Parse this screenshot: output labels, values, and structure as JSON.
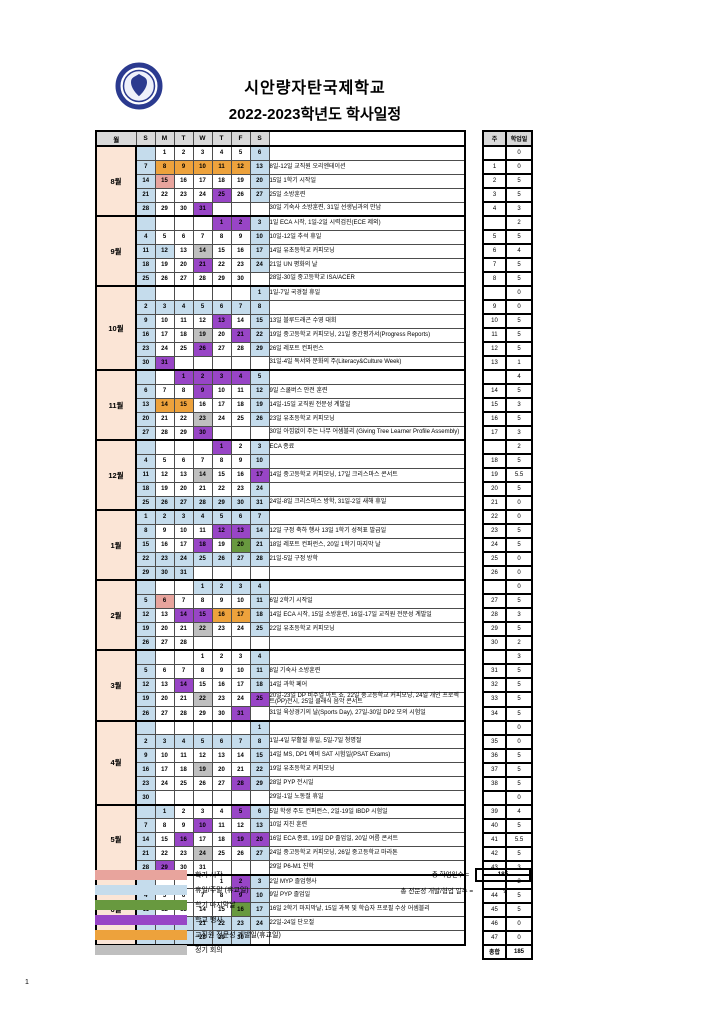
{
  "header": {
    "school_name": "시안량자탄국제학교",
    "title": "2022-2023학년도 학사일정"
  },
  "colors": {
    "holiday_weekend": "#c5dcec",
    "school_event": "#9845c6",
    "pd_day": "#eda23c",
    "semester_start": "#e8a49d",
    "semester_end": "#68993f",
    "meeting": "#bfbfbf",
    "month_column_bg": "#fbe5d6",
    "header_bg": "#d9d9d9",
    "logo_navy": "#2b3a8f"
  },
  "calendar": {
    "headers": {
      "month": "월",
      "days": [
        "S",
        "M",
        "T",
        "W",
        "T",
        "F",
        "S"
      ],
      "week": "주",
      "school_days": "학업일"
    },
    "cell_format": "day|colorcode — h=holiday/weekend, e=school-event, p=pd-day, s=semester-start, x=semester-end, m=meeting, empty=regular school day",
    "months": [
      {
        "name": "8월",
        "rows": [
          {
            "days": [
              "|h",
              "1|",
              "2|",
              "3|",
              "4|",
              "5|",
              "6|h"
            ],
            "note": "",
            "week": "",
            "sd": "0"
          },
          {
            "days": [
              "7|h",
              "8|p",
              "9|p",
              "10|p",
              "11|p",
              "12|p",
              "13|h"
            ],
            "note": "8일-12일 교직원 오리엔테이션",
            "week": "1",
            "sd": "0"
          },
          {
            "days": [
              "14|h",
              "15|s",
              "16|",
              "17|",
              "18|",
              "19|",
              "20|h"
            ],
            "note": "15일 1학기 시작일",
            "week": "2",
            "sd": "5"
          },
          {
            "days": [
              "21|h",
              "22|",
              "23|",
              "24|",
              "25|e",
              "26|",
              "27|h"
            ],
            "note": "25일 소방훈련",
            "week": "3",
            "sd": "5"
          },
          {
            "days": [
              "28|h",
              "29|",
              "30|",
              "31|e",
              "|",
              "|",
              "|"
            ],
            "note": "30일 기숙사 소방훈련, 31일 선생님과의 만남",
            "week": "4",
            "sd": "3"
          }
        ]
      },
      {
        "name": "9월",
        "rows": [
          {
            "days": [
              "|h",
              "|",
              "|",
              "|",
              "1|e",
              "2|e",
              "3|h"
            ],
            "note": "1일 ECA 시작, 1일-2일 시력검진(ECE 제외)",
            "week": "",
            "sd": "2"
          },
          {
            "days": [
              "4|h",
              "5|",
              "6|",
              "7|",
              "8|",
              "9|",
              "10|h"
            ],
            "note": "10일-12일 추석 휴일",
            "week": "5",
            "sd": "5"
          },
          {
            "days": [
              "11|h",
              "12|h",
              "13|",
              "14|m",
              "15|",
              "16|",
              "17|h"
            ],
            "note": "14일 유초등학교 커피모닝",
            "week": "6",
            "sd": "4"
          },
          {
            "days": [
              "18|h",
              "19|",
              "20|",
              "21|e",
              "22|",
              "23|",
              "24|h"
            ],
            "note": "21일 UN 평화의 날",
            "week": "7",
            "sd": "5"
          },
          {
            "days": [
              "25|h",
              "26|",
              "27|",
              "28|",
              "29|",
              "30|",
              "|"
            ],
            "note": "28일-30일 중고등학교 ISA/ACER",
            "week": "8",
            "sd": "5"
          }
        ]
      },
      {
        "name": "10월",
        "rows": [
          {
            "days": [
              "|h",
              "|",
              "|",
              "|",
              "|",
              "|",
              "1|h"
            ],
            "note": "1일-7일 국경절 휴일",
            "week": "",
            "sd": "0"
          },
          {
            "days": [
              "2|h",
              "3|h",
              "4|h",
              "5|h",
              "6|h",
              "7|h",
              "8|h"
            ],
            "note": "",
            "week": "9",
            "sd": "0"
          },
          {
            "days": [
              "9|h",
              "10|",
              "11|",
              "12|",
              "13|e",
              "14|",
              "15|h"
            ],
            "note": "13일 블루드래곤 수영 대회",
            "week": "10",
            "sd": "5"
          },
          {
            "days": [
              "16|h",
              "17|",
              "18|",
              "19|m",
              "20|",
              "21|e",
              "22|h"
            ],
            "note": "19일 중고등학교 커피모닝, 21일 중간평가서(Progress Reports)",
            "week": "11",
            "sd": "5"
          },
          {
            "days": [
              "23|h",
              "24|",
              "25|",
              "26|e",
              "27|",
              "28|",
              "29|h"
            ],
            "note": "26일 레포트 컨퍼런스",
            "week": "12",
            "sd": "5"
          },
          {
            "days": [
              "30|h",
              "31|e",
              "|",
              "|",
              "|",
              "|",
              "|"
            ],
            "note": "31일-4일 독서와 문화의 주(Literacy&Culture Week)",
            "week": "13",
            "sd": "1"
          }
        ]
      },
      {
        "name": "11월",
        "rows": [
          {
            "days": [
              "|h",
              "|",
              "1|e",
              "2|e",
              "3|e",
              "4|e",
              "5|h"
            ],
            "note": "",
            "week": "",
            "sd": "4"
          },
          {
            "days": [
              "6|h",
              "7|",
              "8|",
              "9|e",
              "10|",
              "11|",
              "12|h"
            ],
            "note": "9일 스쿨버스 안전 훈련",
            "week": "14",
            "sd": "5"
          },
          {
            "days": [
              "13|h",
              "14|p",
              "15|p",
              "16|",
              "17|",
              "18|",
              "19|h"
            ],
            "note": "14일-15일 교직원 전문성 계발일",
            "week": "15",
            "sd": "3"
          },
          {
            "days": [
              "20|h",
              "21|",
              "22|",
              "23|m",
              "24|",
              "25|",
              "26|h"
            ],
            "note": "23일 유초등학교 커피모닝",
            "week": "16",
            "sd": "5"
          },
          {
            "days": [
              "27|h",
              "28|",
              "29|",
              "30|e",
              "|",
              "|",
              "|"
            ],
            "note": "30일 아낌없이 주는 나무 어셈블리 (Giving Tree Learner Profile Assembly)",
            "week": "17",
            "sd": "3"
          }
        ]
      },
      {
        "name": "12월",
        "rows": [
          {
            "days": [
              "|h",
              "|",
              "|",
              "|",
              "1|e",
              "2|",
              "3|h"
            ],
            "note": "ECA 종료",
            "week": "",
            "sd": "2"
          },
          {
            "days": [
              "4|h",
              "5|",
              "6|",
              "7|",
              "8|",
              "9|",
              "10|h"
            ],
            "note": "",
            "week": "18",
            "sd": "5"
          },
          {
            "days": [
              "11|h",
              "12|",
              "13|",
              "14|m",
              "15|",
              "16|",
              "17|e"
            ],
            "note": "14일 중고등학교 커피모닝, 17일 크리스마스 콘서트",
            "week": "19",
            "sd": "5.5"
          },
          {
            "days": [
              "18|h",
              "19|",
              "20|",
              "21|",
              "22|",
              "23|",
              "24|h"
            ],
            "note": "",
            "week": "20",
            "sd": "5"
          },
          {
            "days": [
              "25|h",
              "26|h",
              "27|h",
              "28|h",
              "29|h",
              "30|h",
              "31|h"
            ],
            "note": "24일-8일 크리스마스 방학, 31일-2일 새해 휴일",
            "week": "21",
            "sd": "0"
          }
        ]
      },
      {
        "name": "1월",
        "rows": [
          {
            "days": [
              "1|h",
              "2|h",
              "3|h",
              "4|h",
              "5|h",
              "6|h",
              "7|h"
            ],
            "note": "",
            "week": "22",
            "sd": "0"
          },
          {
            "days": [
              "8|h",
              "9|",
              "10|",
              "11|",
              "12|e",
              "13|e",
              "14|h"
            ],
            "note": "12일 구정 축하 행사 13일 1학기 성적표 발급일",
            "week": "23",
            "sd": "5"
          },
          {
            "days": [
              "15|h",
              "16|",
              "17|",
              "18|e",
              "19|",
              "20|x",
              "21|h"
            ],
            "note": "18일 레포트 컨퍼런스, 20일 1학기 마지막 날",
            "week": "24",
            "sd": "5"
          },
          {
            "days": [
              "22|h",
              "23|h",
              "24|h",
              "25|h",
              "26|h",
              "27|h",
              "28|h"
            ],
            "note": "21일-5일 구정 방학",
            "week": "25",
            "sd": "0"
          },
          {
            "days": [
              "29|h",
              "30|h",
              "31|h",
              "|",
              "|",
              "|",
              "|"
            ],
            "note": "",
            "week": "26",
            "sd": "0"
          }
        ]
      },
      {
        "name": "2월",
        "rows": [
          {
            "days": [
              "|h",
              "|",
              "|",
              "1|h",
              "2|h",
              "3|h",
              "4|h"
            ],
            "note": "",
            "week": "",
            "sd": "0"
          },
          {
            "days": [
              "5|h",
              "6|s",
              "7|",
              "8|",
              "9|",
              "10|",
              "11|h"
            ],
            "note": "6일 2학기 시작일",
            "week": "27",
            "sd": "5"
          },
          {
            "days": [
              "12|h",
              "13|",
              "14|e",
              "15|e",
              "16|p",
              "17|p",
              "18|h"
            ],
            "note": "14일 ECA 시작, 15일 소방훈련, 16일-17일 교직원 전문성 계발일",
            "week": "28",
            "sd": "3"
          },
          {
            "days": [
              "19|h",
              "20|",
              "21|",
              "22|m",
              "23|",
              "24|",
              "25|h"
            ],
            "note": "22일 유초등학교 커피모닝",
            "week": "29",
            "sd": "5"
          },
          {
            "days": [
              "26|h",
              "27|",
              "28|",
              "|",
              "|",
              "|",
              "|"
            ],
            "note": "",
            "week": "30",
            "sd": "2"
          }
        ]
      },
      {
        "name": "3월",
        "rows": [
          {
            "days": [
              "|h",
              "|",
              "|",
              "1|",
              "2|",
              "3|",
              "4|h"
            ],
            "note": "",
            "week": "",
            "sd": "3"
          },
          {
            "days": [
              "5|h",
              "6|",
              "7|",
              "8|",
              "9|",
              "10|",
              "11|h"
            ],
            "note": "8일 기숙사 소방훈련",
            "week": "31",
            "sd": "5"
          },
          {
            "days": [
              "12|h",
              "13|",
              "14|e",
              "15|",
              "16|",
              "17|",
              "18|h"
            ],
            "note": "14일 과학 페어",
            "week": "32",
            "sd": "5"
          },
          {
            "days": [
              "19|h",
              "20|",
              "21|",
              "22|m",
              "23|",
              "24|",
              "25|e"
            ],
            "note": "20일-23일 DP 비주얼 아트 쇼, 22일 중고등학교 커피모닝, 24일 개인 프로젝트(PP)전시, 25일 클래식 음악 콘서트",
            "week": "33",
            "sd": "5"
          },
          {
            "days": [
              "26|h",
              "27|",
              "28|",
              "29|",
              "30|",
              "31|e",
              "|"
            ],
            "note": "31일 육상경기의 날(Sports Day), 27일-30일 DP2 모의 시험일",
            "week": "34",
            "sd": "5"
          }
        ]
      },
      {
        "name": "4월",
        "rows": [
          {
            "days": [
              "|h",
              "|",
              "|",
              "|",
              "|",
              "|",
              "1|h"
            ],
            "note": "",
            "week": "",
            "sd": "0"
          },
          {
            "days": [
              "2|h",
              "3|h",
              "4|h",
              "5|h",
              "6|h",
              "7|h",
              "8|h"
            ],
            "note": "1일-4일 부활절 휴일, 5일-7일 청명절",
            "week": "35",
            "sd": "0"
          },
          {
            "days": [
              "9|h",
              "10|",
              "11|",
              "12|",
              "13|",
              "14|",
              "15|h"
            ],
            "note": "14일 MS, DP1 예비 SAT 시험일(PSAT Exams)",
            "week": "36",
            "sd": "5"
          },
          {
            "days": [
              "16|h",
              "17|",
              "18|",
              "19|m",
              "20|",
              "21|",
              "22|h"
            ],
            "note": "19일 유초등학교 커피모닝",
            "week": "37",
            "sd": "5"
          },
          {
            "days": [
              "23|h",
              "24|",
              "25|",
              "26|",
              "27|",
              "28|e",
              "29|h"
            ],
            "note": "28일 PYP 전시일",
            "week": "38",
            "sd": "5"
          },
          {
            "days": [
              "30|h",
              "|",
              "|",
              "|",
              "|",
              "|",
              "|"
            ],
            "note": "29일-1일 노동절 휴일",
            "week": "",
            "sd": "0"
          }
        ]
      },
      {
        "name": "5월",
        "rows": [
          {
            "days": [
              "|h",
              "1|h",
              "2|",
              "3|",
              "4|",
              "5|e",
              "6|h"
            ],
            "note": "5일 학생 주도 컨퍼런스, 2일-19일 IBDP 시험일",
            "week": "39",
            "sd": "4"
          },
          {
            "days": [
              "7|h",
              "8|",
              "9|",
              "10|e",
              "11|",
              "12|",
              "13|h"
            ],
            "note": "10일 지진 훈련",
            "week": "40",
            "sd": "5"
          },
          {
            "days": [
              "14|h",
              "15|",
              "16|e",
              "17|",
              "18|",
              "19|e",
              "20|e"
            ],
            "note": "16일 ECA 종료, 19일 DP 졸업일, 20일 여름 콘서트",
            "week": "41",
            "sd": "5.5"
          },
          {
            "days": [
              "21|h",
              "22|",
              "23|",
              "24|m",
              "25|",
              "26|",
              "27|h"
            ],
            "note": "24일 중고등학교 커피모닝, 26일 중고등학교 마라톤",
            "week": "42",
            "sd": "5"
          },
          {
            "days": [
              "28|h",
              "29|e",
              "30|",
              "31|",
              "|",
              "|",
              "|"
            ],
            "note": "29일 P6-M1 진학",
            "week": "43",
            "sd": "3"
          }
        ]
      },
      {
        "name": "6월",
        "rows": [
          {
            "days": [
              "|h",
              "|",
              "|",
              "|",
              "1|",
              "2|e",
              "3|h"
            ],
            "note": "2일 MYP 졸업행사",
            "week": "",
            "sd": "2"
          },
          {
            "days": [
              "4|h",
              "5|",
              "6|",
              "7|",
              "8|",
              "9|e",
              "10|h"
            ],
            "note": "9일 PYP 졸업일",
            "week": "44",
            "sd": "5"
          },
          {
            "days": [
              "11|h",
              "12|",
              "13|",
              "14|",
              "15|",
              "16|x",
              "17|h"
            ],
            "note": "16일 2학기 마지막날, 15일 과목 및 학습자 프로필 수상 어셈블리",
            "week": "45",
            "sd": "5"
          },
          {
            "days": [
              "18|h",
              "19|h",
              "20|h",
              "21|h",
              "22|h",
              "23|h",
              "24|h"
            ],
            "note": "22일-24일 단오절",
            "week": "46",
            "sd": "0"
          },
          {
            "days": [
              "25|h",
              "26|h",
              "27|h",
              "28|h",
              "29|h",
              "30|h",
              "|"
            ],
            "note": "",
            "week": "47",
            "sd": "0"
          }
        ]
      }
    ],
    "total_row": {
      "label": "총합",
      "value": "185"
    }
  },
  "legend": [
    {
      "label": "학기 시작",
      "color": "semester_start"
    },
    {
      "label": "휴일/주말 (휴교일)",
      "color": "holiday_weekend"
    },
    {
      "label": "학기 마지막날",
      "color": "semester_end"
    },
    {
      "label": "학교 행사",
      "color": "school_event"
    },
    {
      "label": "교직원 전문성 계발일(휴교일)",
      "color": "pd_day"
    },
    {
      "label": "정기 회의",
      "color": "meeting"
    }
  ],
  "totals": {
    "school_days_label": "총 학업일수 =",
    "school_days_value": "185",
    "pd_days_label": "총 전문성 개발/협업 일수 =",
    "pd_days_value": "9"
  },
  "page_number": "1"
}
